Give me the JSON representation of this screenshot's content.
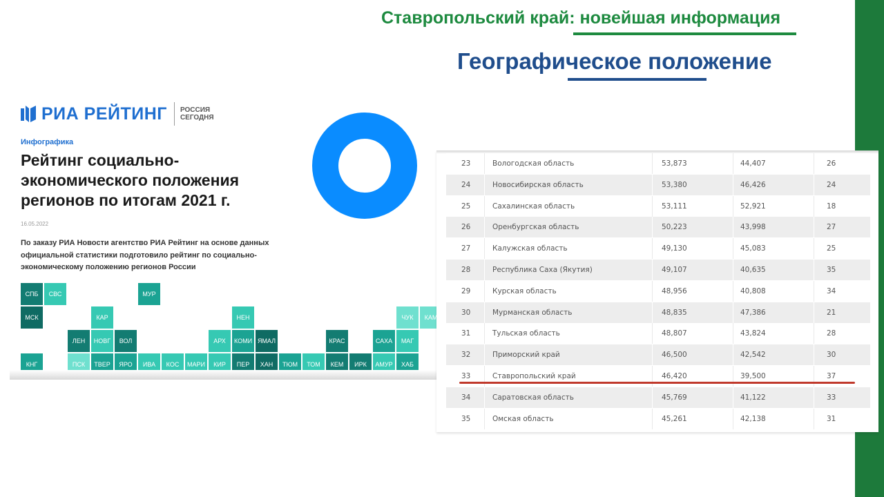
{
  "header": {
    "title": "Ставропольский край: новейшая информация",
    "subtitle": "Географическое положение"
  },
  "colors": {
    "green": "#1d8a3f",
    "blue": "#1f4d8c",
    "ria_blue": "#1f6fd0",
    "donut": "#0a8cff",
    "highlight": "#c0392b"
  },
  "ria": {
    "logo": "РИА РЕЙТИНГ",
    "logo_sub": "РОССИЯ СЕГОДНЯ",
    "kicker": "Инфографика",
    "headline": "Рейтинг социально-экономического положения регионов по итогам 2021 г.",
    "date": "16.05.2022",
    "lead": "По заказу РИА Новости агентство РИА Рейтинг на основе данных официальной статистики подготовило рейтинг по социально-экономическому положению регионов России",
    "tiles": [
      {
        "label": "СПБ",
        "col": 0,
        "row": 0,
        "tone": "dark"
      },
      {
        "label": "СВС",
        "col": 1,
        "row": 0,
        "tone": "light"
      },
      {
        "label": "МУР",
        "col": 5,
        "row": 0,
        "tone": "mid"
      },
      {
        "label": "МСК",
        "col": 0,
        "row": 1,
        "tone": "darker"
      },
      {
        "label": "КАР",
        "col": 3,
        "row": 1,
        "tone": "light"
      },
      {
        "label": "НЕН",
        "col": 9,
        "row": 1,
        "tone": "light"
      },
      {
        "label": "ЧУК",
        "col": 16,
        "row": 1,
        "tone": "pale"
      },
      {
        "label": "КАМ",
        "col": 17,
        "row": 1,
        "tone": "pale"
      },
      {
        "label": "ЛЕН",
        "col": 2,
        "row": 2,
        "tone": "dark"
      },
      {
        "label": "НОВГ",
        "col": 3,
        "row": 2,
        "tone": "light"
      },
      {
        "label": "ВОЛ",
        "col": 4,
        "row": 2,
        "tone": "dark"
      },
      {
        "label": "АРХ",
        "col": 8,
        "row": 2,
        "tone": "light"
      },
      {
        "label": "КОМИ",
        "col": 9,
        "row": 2,
        "tone": "mid"
      },
      {
        "label": "ЯМАЛ",
        "col": 10,
        "row": 2,
        "tone": "darker"
      },
      {
        "label": "КРАС",
        "col": 13,
        "row": 2,
        "tone": "dark"
      },
      {
        "label": "САХА",
        "col": 15,
        "row": 2,
        "tone": "mid"
      },
      {
        "label": "МАГ",
        "col": 16,
        "row": 2,
        "tone": "light"
      },
      {
        "label": "КНГ",
        "col": 0,
        "row": 3,
        "tone": "mid"
      },
      {
        "label": "ПСК",
        "col": 2,
        "row": 3,
        "tone": "pale"
      },
      {
        "label": "ТВЕР",
        "col": 3,
        "row": 3,
        "tone": "mid"
      },
      {
        "label": "ЯРО",
        "col": 4,
        "row": 3,
        "tone": "mid"
      },
      {
        "label": "ИВА",
        "col": 5,
        "row": 3,
        "tone": "light"
      },
      {
        "label": "КОС",
        "col": 6,
        "row": 3,
        "tone": "light"
      },
      {
        "label": "МАРИ",
        "col": 7,
        "row": 3,
        "tone": "light"
      },
      {
        "label": "КИР",
        "col": 8,
        "row": 3,
        "tone": "light"
      },
      {
        "label": "ПЕР",
        "col": 9,
        "row": 3,
        "tone": "dark"
      },
      {
        "label": "ХАН",
        "col": 10,
        "row": 3,
        "tone": "darker"
      },
      {
        "label": "ТЮМ",
        "col": 11,
        "row": 3,
        "tone": "mid"
      },
      {
        "label": "ТОМ",
        "col": 12,
        "row": 3,
        "tone": "light"
      },
      {
        "label": "КЕМ",
        "col": 13,
        "row": 3,
        "tone": "dark"
      },
      {
        "label": "ИРК",
        "col": 14,
        "row": 3,
        "tone": "dark"
      },
      {
        "label": "АМУР",
        "col": 15,
        "row": 3,
        "tone": "light"
      },
      {
        "label": "ХАБ",
        "col": 16,
        "row": 3,
        "tone": "mid"
      }
    ]
  },
  "table": {
    "rows": [
      {
        "rank": "23",
        "region": "Вологодская область",
        "v1": "53,873",
        "v2": "44,407",
        "v3": "26"
      },
      {
        "rank": "24",
        "region": "Новосибирская область",
        "v1": "53,380",
        "v2": "46,426",
        "v3": "24"
      },
      {
        "rank": "25",
        "region": "Сахалинская область",
        "v1": "53,111",
        "v2": "52,921",
        "v3": "18"
      },
      {
        "rank": "26",
        "region": "Оренбургская область",
        "v1": "50,223",
        "v2": "43,998",
        "v3": "27"
      },
      {
        "rank": "27",
        "region": "Калужская область",
        "v1": "49,130",
        "v2": "45,083",
        "v3": "25"
      },
      {
        "rank": "28",
        "region": "Республика Саха (Якутия)",
        "v1": "49,107",
        "v2": "40,635",
        "v3": "35"
      },
      {
        "rank": "29",
        "region": "Курская область",
        "v1": "48,956",
        "v2": "40,808",
        "v3": "34"
      },
      {
        "rank": "30",
        "region": "Мурманская область",
        "v1": "48,835",
        "v2": "47,386",
        "v3": "21"
      },
      {
        "rank": "31",
        "region": "Тульская область",
        "v1": "48,807",
        "v2": "43,824",
        "v3": "28"
      },
      {
        "rank": "32",
        "region": "Приморский край",
        "v1": "46,500",
        "v2": "42,542",
        "v3": "30"
      },
      {
        "rank": "33",
        "region": "Ставропольский край",
        "v1": "46,420",
        "v2": "39,500",
        "v3": "37"
      },
      {
        "rank": "34",
        "region": "Саратовская область",
        "v1": "45,769",
        "v2": "41,122",
        "v3": "33"
      },
      {
        "rank": "35",
        "region": "Омская область",
        "v1": "45,261",
        "v2": "42,138",
        "v3": "31"
      }
    ],
    "highlighted_rank": "33"
  }
}
